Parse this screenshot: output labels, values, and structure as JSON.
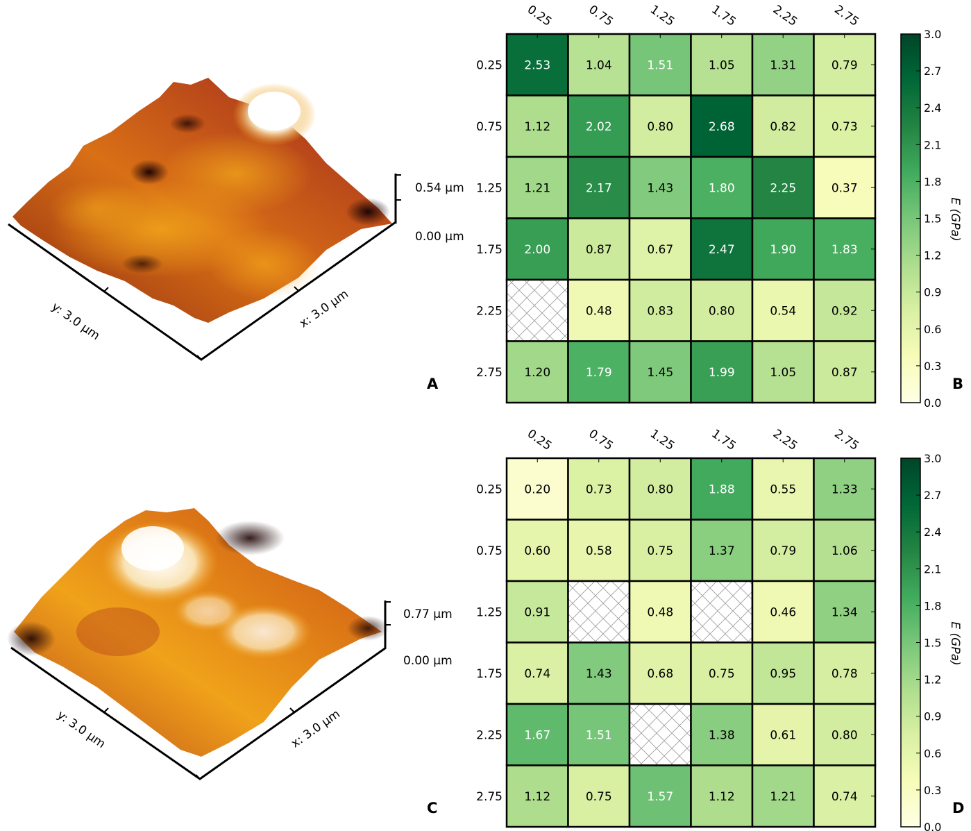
{
  "panels": {
    "A": {
      "letter": "A",
      "z_max_label": "0.54 µm",
      "z_min_label": "0.00 µm",
      "x_axis_label": "x: 3.0 µm",
      "y_axis_label": "y: 3.0 µm",
      "palette": [
        "#1f0505",
        "#5a1208",
        "#8e2a10",
        "#b8461a",
        "#d97016",
        "#f0a21a",
        "#f7cd6a",
        "#ffffff"
      ]
    },
    "C": {
      "letter": "C",
      "z_max_label": "0.77 µm",
      "z_min_label": "0.00 µm",
      "x_axis_label": "x: 3.0 µm",
      "y_axis_label": "y: 3.0 µm",
      "palette": [
        "#1f0505",
        "#5a1208",
        "#8e2a10",
        "#b8461a",
        "#d97016",
        "#f0a21a",
        "#f7cd6a",
        "#ffffff"
      ]
    }
  },
  "chart_data": [
    {
      "id": "B",
      "panel_letter": "B",
      "type": "heatmap",
      "x_ticks": [
        "0.25",
        "0.75",
        "1.25",
        "1.75",
        "2.25",
        "2.75"
      ],
      "y_ticks": [
        "0.25",
        "0.75",
        "1.25",
        "1.75",
        "2.25",
        "2.75"
      ],
      "values": [
        [
          2.53,
          1.04,
          1.51,
          1.05,
          1.31,
          0.79
        ],
        [
          1.12,
          2.02,
          0.8,
          2.68,
          0.82,
          0.73
        ],
        [
          1.21,
          2.17,
          1.43,
          1.8,
          2.25,
          0.37
        ],
        [
          2.0,
          0.87,
          0.67,
          2.47,
          1.9,
          1.83
        ],
        [
          null,
          0.48,
          0.83,
          0.8,
          0.54,
          0.92
        ],
        [
          1.2,
          1.79,
          1.45,
          1.99,
          1.05,
          0.87
        ]
      ],
      "colorbar": {
        "label": "E (GPa)",
        "range": [
          0.0,
          3.0
        ],
        "ticks": [
          "0.0",
          "0.3",
          "0.6",
          "0.9",
          "1.2",
          "1.5",
          "1.8",
          "2.1",
          "2.4",
          "2.7",
          "3.0"
        ],
        "colormap": [
          "#ffffe5",
          "#f7fcb9",
          "#d9f0a3",
          "#addd8e",
          "#78c679",
          "#41ab5d",
          "#238443",
          "#006837",
          "#004529"
        ]
      }
    },
    {
      "id": "D",
      "panel_letter": "D",
      "type": "heatmap",
      "x_ticks": [
        "0.25",
        "0.75",
        "1.25",
        "1.75",
        "2.25",
        "2.75"
      ],
      "y_ticks": [
        "0.25",
        "0.75",
        "1.25",
        "1.75",
        "2.25",
        "2.75"
      ],
      "values": [
        [
          0.2,
          0.73,
          0.8,
          1.88,
          0.55,
          1.33
        ],
        [
          0.6,
          0.58,
          0.75,
          1.37,
          0.79,
          1.06
        ],
        [
          0.91,
          null,
          0.48,
          null,
          0.46,
          1.34
        ],
        [
          0.74,
          1.43,
          0.68,
          0.75,
          0.95,
          0.78
        ],
        [
          1.67,
          1.51,
          null,
          1.38,
          0.61,
          0.8
        ],
        [
          1.12,
          0.75,
          1.57,
          1.12,
          1.21,
          0.74
        ]
      ],
      "colorbar": {
        "label": "E (GPa)",
        "range": [
          0.0,
          3.0
        ],
        "ticks": [
          "0.0",
          "0.3",
          "0.6",
          "0.9",
          "1.2",
          "1.5",
          "1.8",
          "2.1",
          "2.4",
          "2.7",
          "3.0"
        ],
        "colormap": [
          "#ffffe5",
          "#f7fcb9",
          "#d9f0a3",
          "#addd8e",
          "#78c679",
          "#41ab5d",
          "#238443",
          "#006837",
          "#004529"
        ]
      }
    }
  ]
}
